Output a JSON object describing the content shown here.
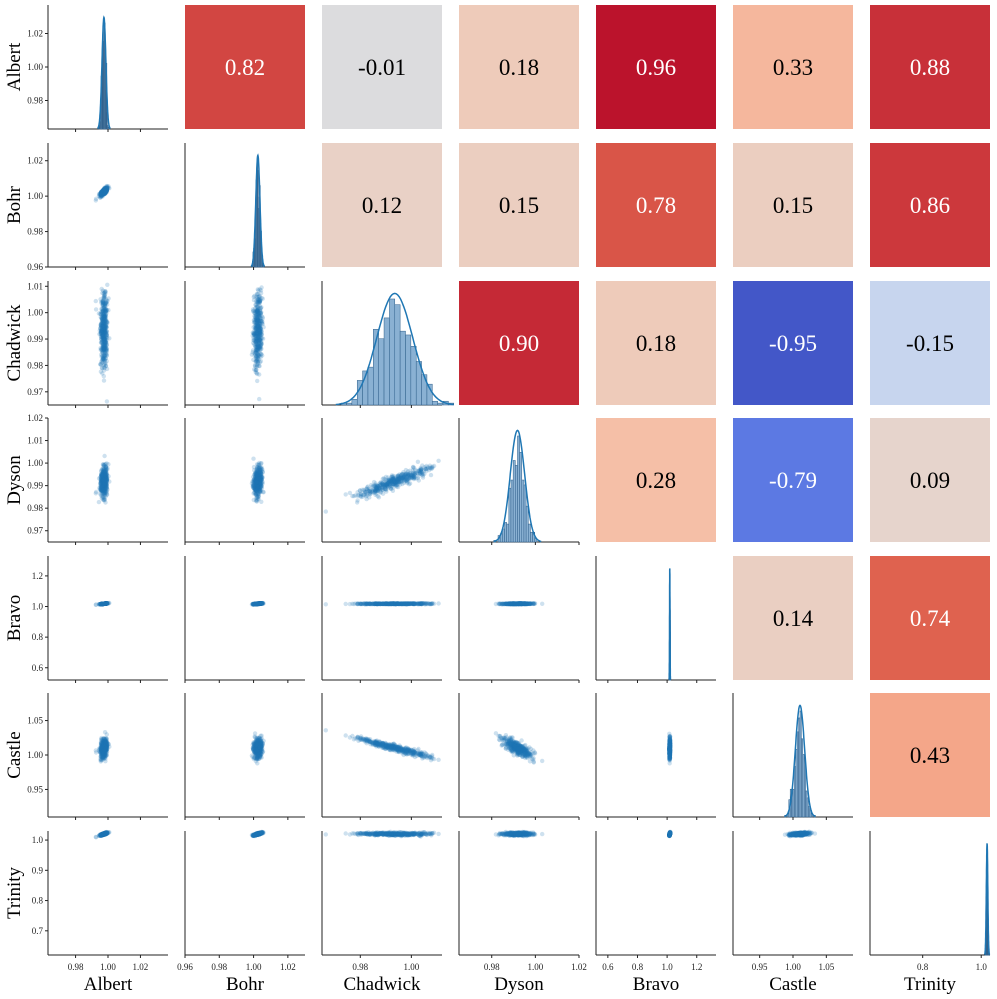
{
  "chart_data": {
    "type": "pairplot",
    "variables": [
      "Albert",
      "Bohr",
      "Chadwick",
      "Dyson",
      "Bravo",
      "Castle",
      "Trinity"
    ],
    "axis_labels": [
      "Albert",
      "Bohr",
      "Chadwick",
      "Dyson",
      "Bravo",
      "Castle",
      "Trinity"
    ],
    "lower": "scatter",
    "diagonal": "histogram with kde",
    "upper": "correlation heatmap",
    "correlation_matrix": [
      [
        1.0,
        0.82,
        -0.01,
        0.18,
        0.96,
        0.33,
        0.88
      ],
      [
        0.82,
        1.0,
        0.12,
        0.15,
        0.78,
        0.15,
        0.86
      ],
      [
        -0.01,
        0.12,
        1.0,
        0.9,
        0.18,
        -0.95,
        -0.15
      ],
      [
        0.18,
        0.15,
        0.9,
        1.0,
        0.28,
        -0.79,
        0.09
      ],
      [
        0.96,
        0.78,
        0.18,
        0.28,
        1.0,
        0.14,
        0.74
      ],
      [
        0.33,
        0.15,
        -0.95,
        -0.79,
        0.14,
        1.0,
        0.43
      ],
      [
        0.88,
        0.86,
        -0.15,
        0.09,
        0.74,
        0.43,
        1.0
      ]
    ],
    "correlation_labels": [
      {
        "row": 0,
        "col": 1,
        "text": "0.82"
      },
      {
        "row": 0,
        "col": 2,
        "text": "-0.01"
      },
      {
        "row": 0,
        "col": 3,
        "text": "0.18"
      },
      {
        "row": 0,
        "col": 4,
        "text": "0.96"
      },
      {
        "row": 0,
        "col": 5,
        "text": "0.33"
      },
      {
        "row": 0,
        "col": 6,
        "text": "0.88"
      },
      {
        "row": 1,
        "col": 2,
        "text": "0.12"
      },
      {
        "row": 1,
        "col": 3,
        "text": "0.15"
      },
      {
        "row": 1,
        "col": 4,
        "text": "0.78"
      },
      {
        "row": 1,
        "col": 5,
        "text": "0.15"
      },
      {
        "row": 1,
        "col": 6,
        "text": "0.86"
      },
      {
        "row": 2,
        "col": 3,
        "text": "0.90"
      },
      {
        "row": 2,
        "col": 4,
        "text": "0.18"
      },
      {
        "row": 2,
        "col": 5,
        "text": "-0.95"
      },
      {
        "row": 2,
        "col": 6,
        "text": "-0.15"
      },
      {
        "row": 3,
        "col": 4,
        "text": "0.28"
      },
      {
        "row": 3,
        "col": 5,
        "text": "-0.79"
      },
      {
        "row": 3,
        "col": 6,
        "text": "0.09"
      },
      {
        "row": 4,
        "col": 5,
        "text": "0.14"
      },
      {
        "row": 4,
        "col": 6,
        "text": "0.74"
      },
      {
        "row": 5,
        "col": 6,
        "text": "0.43"
      }
    ],
    "colormap": "coolwarm",
    "stats": [
      {
        "name": "Albert",
        "mean": 0.9975,
        "sd": 0.0012
      },
      {
        "name": "Bohr",
        "mean": 1.0025,
        "sd": 0.0012
      },
      {
        "name": "Chadwick",
        "mean": 0.9935,
        "sd": 0.007
      },
      {
        "name": "Dyson",
        "mean": 0.9918,
        "sd": 0.0033
      },
      {
        "name": "Bravo",
        "mean": 1.018,
        "sd": 0.0015
      },
      {
        "name": "Castle",
        "mean": 1.0105,
        "sd": 0.007
      },
      {
        "name": "Trinity",
        "mean": 1.02,
        "sd": 0.0025
      }
    ],
    "axis_ranges": [
      [
        0.963,
        1.037
      ],
      [
        0.96,
        1.03
      ],
      [
        0.965,
        1.012
      ],
      [
        0.965,
        1.02
      ],
      [
        0.52,
        1.33
      ],
      [
        0.91,
        1.09
      ],
      [
        0.62,
        1.03
      ]
    ],
    "row_ticks": [
      [
        0.98,
        1.0,
        1.02
      ],
      [
        0.96,
        0.98,
        1.0,
        1.02
      ],
      [
        0.97,
        0.98,
        0.99,
        1.0,
        1.01
      ],
      [
        0.97,
        0.98,
        0.99,
        1.0,
        1.01,
        1.02
      ],
      [
        0.6,
        0.8,
        1.0,
        1.2
      ],
      [
        0.95,
        1.0,
        1.05
      ],
      [
        0.7,
        0.8,
        0.9,
        1.0
      ]
    ],
    "col_ticks": [
      [
        0.98,
        1.0,
        1.02
      ],
      [
        0.96,
        0.98,
        1.0,
        1.02
      ],
      [
        0.98,
        1.0
      ],
      [
        0.98,
        1.0,
        1.02
      ],
      [
        0.6,
        0.8,
        1.0,
        1.2
      ],
      [
        0.95,
        1.0,
        1.05
      ],
      [
        0.8,
        1.0
      ]
    ],
    "grid": false,
    "legend": "none"
  }
}
